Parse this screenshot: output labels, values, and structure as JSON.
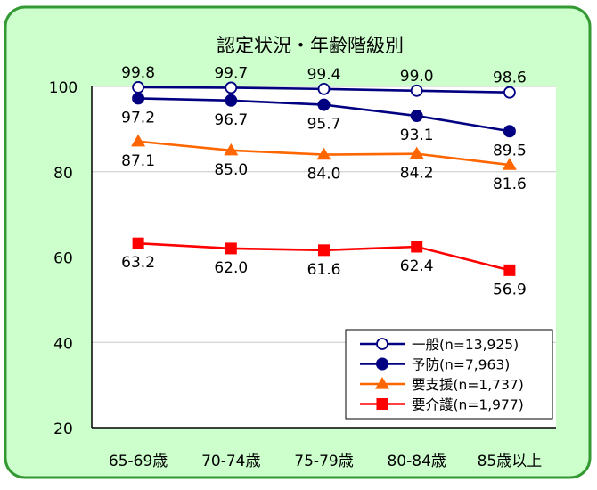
{
  "colors": {
    "panel_fill": "#ccffcc",
    "panel_border": "#339933",
    "plot_bg": "#ffffff",
    "gridline": "#c8c8c8",
    "axis": "#000000"
  },
  "chart_data": {
    "type": "line",
    "title": "認定状況・年齢階級別",
    "xlabel": "",
    "ylabel": "",
    "categories": [
      "65-69歳",
      "70-74歳",
      "75-79歳",
      "80-84歳",
      "85歳以上"
    ],
    "ylim": [
      20,
      100
    ],
    "yticks": [
      20,
      40,
      60,
      80,
      100
    ],
    "grid": true,
    "legend_position": "bottom-right",
    "series": [
      {
        "name": "一般(n=13,925)",
        "values": [
          99.8,
          99.7,
          99.4,
          99.0,
          98.6
        ],
        "labels": [
          "99.8",
          "99.7",
          "99.4",
          "99.0",
          "98.6"
        ],
        "color": "#000080",
        "marker": "circle-open",
        "label_pos": "above"
      },
      {
        "name": "予防(n=7,963)",
        "values": [
          97.2,
          96.7,
          95.7,
          93.1,
          89.5
        ],
        "labels": [
          "97.2",
          "96.7",
          "95.7",
          "93.1",
          "89.5"
        ],
        "color": "#000080",
        "marker": "circle-filled",
        "label_pos": "below"
      },
      {
        "name": "要支援(n=1,737)",
        "values": [
          87.1,
          85.0,
          84.0,
          84.2,
          81.6
        ],
        "labels": [
          "87.1",
          "85.0",
          "84.0",
          "84.2",
          "81.6"
        ],
        "color": "#ff6600",
        "marker": "triangle",
        "label_pos": "below"
      },
      {
        "name": "要介護(n=1,977)",
        "values": [
          63.2,
          62.0,
          61.6,
          62.4,
          56.9
        ],
        "labels": [
          "63.2",
          "62.0",
          "61.6",
          "62.4",
          "56.9"
        ],
        "color": "#ff0000",
        "marker": "square",
        "label_pos": "below"
      }
    ]
  }
}
